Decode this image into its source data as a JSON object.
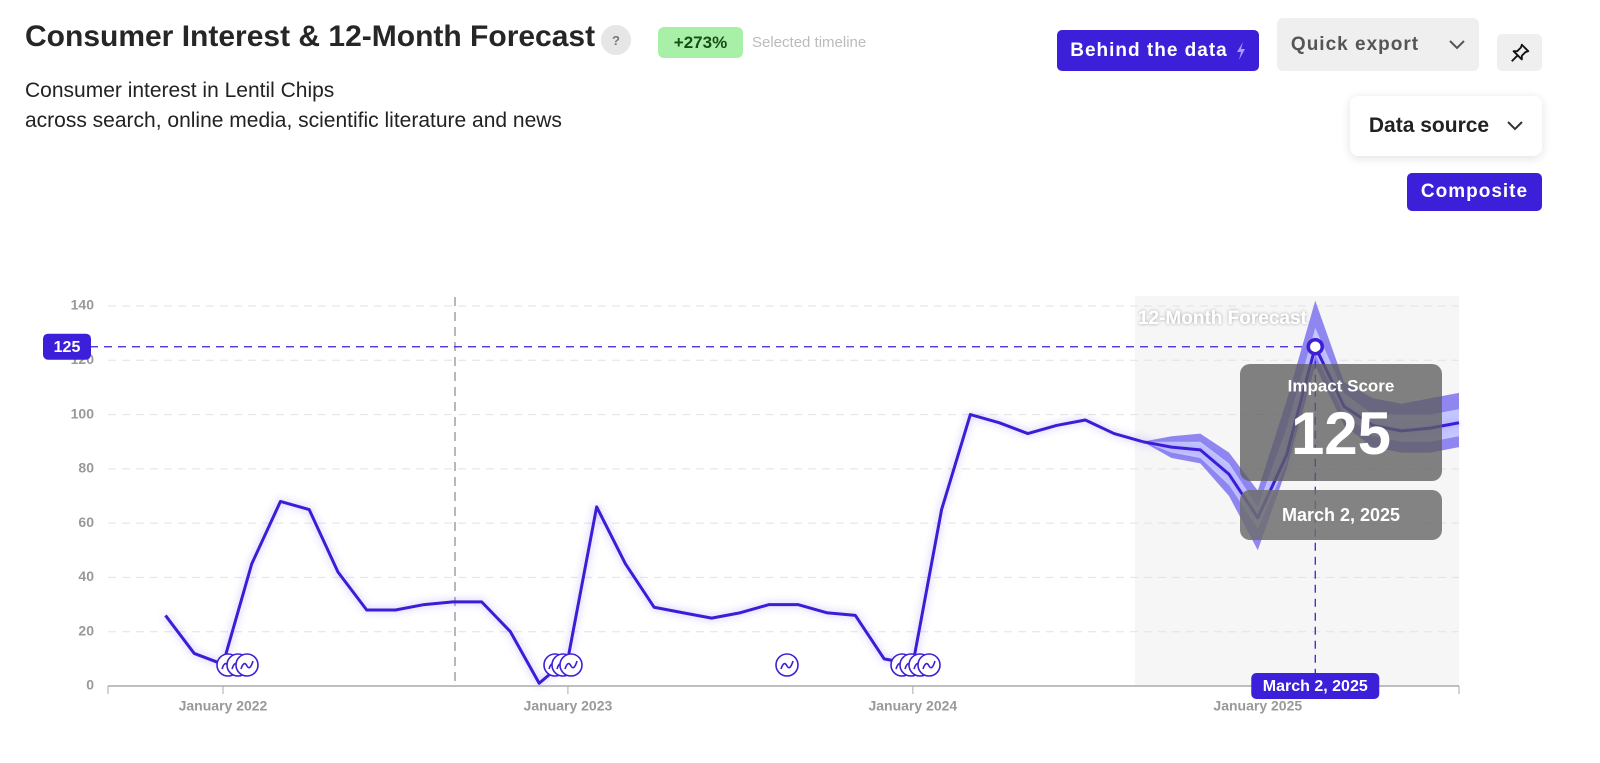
{
  "header": {
    "title": "Consumer Interest & 12-Month Forecast",
    "help": "?",
    "change_badge": "+273%",
    "change_caption": "Selected timeline",
    "subtitle_lines": [
      "Consumer interest in Lentil Chips",
      "across search, online media, scientific literature and news"
    ]
  },
  "controls": {
    "behind_the_data": "Behind the data",
    "quick_export": "Quick export",
    "data_source": "Data source",
    "composite": "Composite"
  },
  "chart_data": {
    "type": "line",
    "forecast_label": "12-Month Forecast",
    "x": [
      "2021-11",
      "2021-12",
      "2022-01",
      "2022-02",
      "2022-03",
      "2022-04",
      "2022-05",
      "2022-06",
      "2022-07",
      "2022-08",
      "2022-09",
      "2022-10",
      "2022-11",
      "2022-12",
      "2023-01",
      "2023-02",
      "2023-03",
      "2023-04",
      "2023-05",
      "2023-06",
      "2023-07",
      "2023-08",
      "2023-09",
      "2023-10",
      "2023-11",
      "2023-12",
      "2024-01",
      "2024-02",
      "2024-03",
      "2024-04",
      "2024-05",
      "2024-06",
      "2024-07",
      "2024-08",
      "2024-09",
      "2024-10",
      "2024-11",
      "2024-12",
      "2025-01",
      "2025-02",
      "2025-03",
      "2025-04",
      "2025-05",
      "2025-06",
      "2025-07",
      "2025-08"
    ],
    "series": [
      {
        "color": "#3d1fd6",
        "values": [
          26,
          12,
          8,
          45,
          68,
          65,
          42,
          28,
          28,
          30,
          31,
          31,
          20,
          1,
          10,
          66,
          45,
          29,
          27,
          25,
          27,
          30,
          30,
          27,
          26,
          10,
          8,
          65,
          100,
          97,
          93,
          96,
          98,
          93,
          90,
          null,
          null,
          null,
          null,
          null,
          null,
          null,
          null,
          null,
          null,
          null
        ]
      },
      {
        "color": "#3d1fd6",
        "forecast": true,
        "values": [
          null,
          null,
          null,
          null,
          null,
          null,
          null,
          null,
          null,
          null,
          null,
          null,
          null,
          null,
          null,
          null,
          null,
          null,
          null,
          null,
          null,
          null,
          null,
          null,
          null,
          null,
          null,
          null,
          null,
          null,
          null,
          null,
          null,
          null,
          90,
          88,
          87,
          78,
          62,
          85,
          125,
          103,
          96,
          94,
          95,
          97
        ]
      }
    ],
    "bands": [
      {
        "color": "#8f86f0",
        "low": [
          null,
          null,
          null,
          null,
          null,
          null,
          null,
          null,
          null,
          null,
          null,
          null,
          null,
          null,
          null,
          null,
          null,
          null,
          null,
          null,
          null,
          null,
          null,
          null,
          null,
          null,
          null,
          null,
          null,
          null,
          null,
          null,
          null,
          null,
          90,
          84,
          82,
          70,
          50,
          80,
          118,
          96,
          88,
          86,
          86,
          88
        ],
        "high": [
          null,
          null,
          null,
          null,
          null,
          null,
          null,
          null,
          null,
          null,
          null,
          null,
          null,
          null,
          null,
          null,
          null,
          null,
          null,
          null,
          null,
          null,
          null,
          null,
          null,
          null,
          null,
          null,
          null,
          null,
          null,
          null,
          null,
          null,
          90,
          92,
          93,
          86,
          72,
          105,
          142,
          112,
          106,
          104,
          106,
          108
        ]
      },
      {
        "color": "#c4c7ff",
        "low": [
          null,
          null,
          null,
          null,
          null,
          null,
          null,
          null,
          null,
          null,
          null,
          null,
          null,
          null,
          null,
          null,
          null,
          null,
          null,
          null,
          null,
          null,
          null,
          null,
          null,
          null,
          null,
          null,
          null,
          null,
          null,
          null,
          null,
          null,
          90,
          86,
          84,
          74,
          58,
          82,
          122,
          100,
          92,
          90,
          90,
          92
        ],
        "high": [
          null,
          null,
          null,
          null,
          null,
          null,
          null,
          null,
          null,
          null,
          null,
          null,
          null,
          null,
          null,
          null,
          null,
          null,
          null,
          null,
          null,
          null,
          null,
          null,
          null,
          null,
          null,
          null,
          null,
          null,
          null,
          null,
          null,
          null,
          90,
          90,
          90,
          82,
          66,
          95,
          132,
          108,
          100,
          100,
          100,
          102
        ]
      }
    ],
    "xlim": [
      "2021-09",
      "2025-08"
    ],
    "xticks": [
      {
        "value": "2022-01",
        "label": "January 2022"
      },
      {
        "value": "2023-01",
        "label": "January 2023"
      },
      {
        "value": "2024-01",
        "label": "January 2024"
      },
      {
        "value": "2025-01",
        "label": "January 2025"
      }
    ],
    "ylim": [
      0,
      140
    ],
    "yticks": [
      0,
      20,
      40,
      60,
      80,
      100,
      120,
      140
    ],
    "grid": true,
    "highlight": {
      "x": "2025-03",
      "value": 125,
      "tooltip_title": "Impact Score",
      "date_label": "March 2, 2025"
    }
  }
}
